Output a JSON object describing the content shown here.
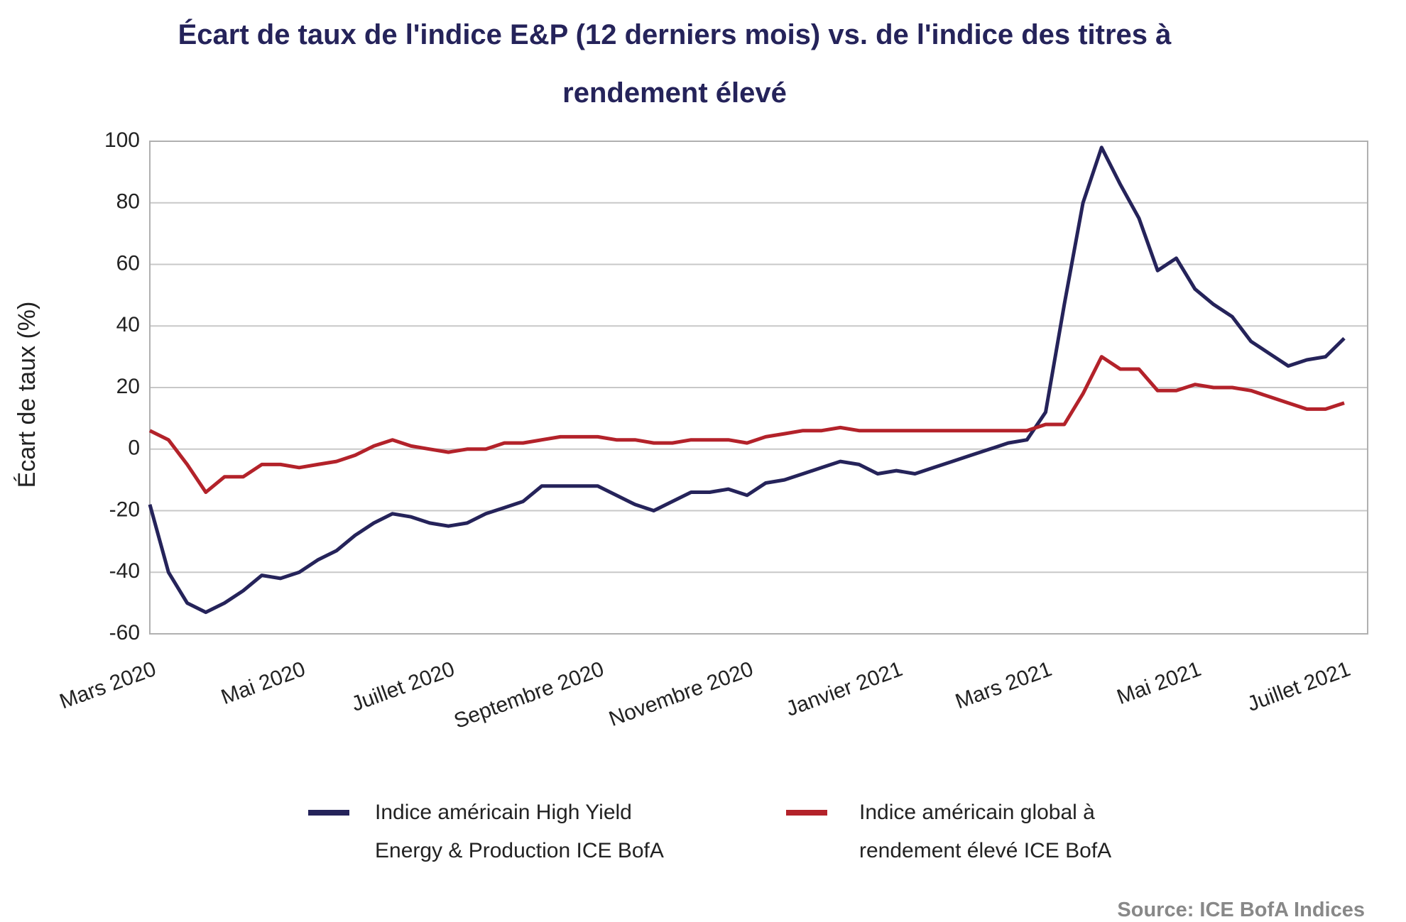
{
  "chart_data": {
    "type": "line",
    "title": "Écart de taux de l'indice E&P (12 derniers mois) vs. de l'indice des titres à rendement élevé",
    "ylabel": "Écart de taux (%)",
    "source": "Source: ICE BofA Indices",
    "categories": [
      "Mars 2020",
      null,
      null,
      null,
      null,
      null,
      null,
      null,
      "Mai 2020",
      null,
      null,
      null,
      null,
      null,
      null,
      null,
      "Juillet 2020",
      null,
      null,
      null,
      null,
      null,
      null,
      null,
      "Septembre 2020",
      null,
      null,
      null,
      null,
      null,
      null,
      null,
      "Novembre 2020",
      null,
      null,
      null,
      null,
      null,
      null,
      null,
      "Janvier 2021",
      null,
      null,
      null,
      null,
      null,
      null,
      null,
      "Mars 2021",
      null,
      null,
      null,
      null,
      null,
      null,
      null,
      "Mai 2021",
      null,
      null,
      null,
      null,
      null,
      null,
      null,
      "Juillet 2021"
    ],
    "series": [
      {
        "name": "Indice américain High Yield Energy & Production ICE BofA",
        "color": "#25235a",
        "values": [
          -18,
          -40,
          -50,
          -53,
          -50,
          -46,
          -41,
          -42,
          -40,
          -36,
          -33,
          -28,
          -24,
          -21,
          -22,
          -24,
          -25,
          -24,
          -21,
          -19,
          -17,
          -12,
          -12,
          -12,
          -12,
          -15,
          -18,
          -20,
          -17,
          -14,
          -14,
          -13,
          -15,
          -11,
          -10,
          -8,
          -6,
          -4,
          -5,
          -8,
          -7,
          -8,
          -6,
          -4,
          -2,
          0,
          2,
          3,
          12,
          47,
          80,
          98,
          86,
          75,
          58,
          62,
          52,
          47,
          43,
          35,
          31,
          27,
          29,
          30,
          36
        ]
      },
      {
        "name": "Indice américain global à rendement élevé ICE BofA",
        "color": "#b3222a",
        "values": [
          6,
          3,
          -5,
          -14,
          -9,
          -9,
          -5,
          -5,
          -6,
          -5,
          -4,
          -2,
          1,
          3,
          1,
          0,
          -1,
          0,
          0,
          2,
          2,
          3,
          4,
          4,
          4,
          3,
          3,
          2,
          2,
          3,
          3,
          3,
          2,
          4,
          5,
          6,
          6,
          7,
          6,
          6,
          6,
          6,
          6,
          6,
          6,
          6,
          6,
          6,
          8,
          8,
          18,
          30,
          26,
          26,
          19,
          19,
          21,
          20,
          20,
          19,
          17,
          15,
          13,
          13,
          15
        ]
      }
    ],
    "ylim": [
      -60,
      100
    ],
    "yticks": [
      -60,
      -40,
      -20,
      0,
      20,
      40,
      60,
      80,
      100
    ],
    "grid": true
  }
}
